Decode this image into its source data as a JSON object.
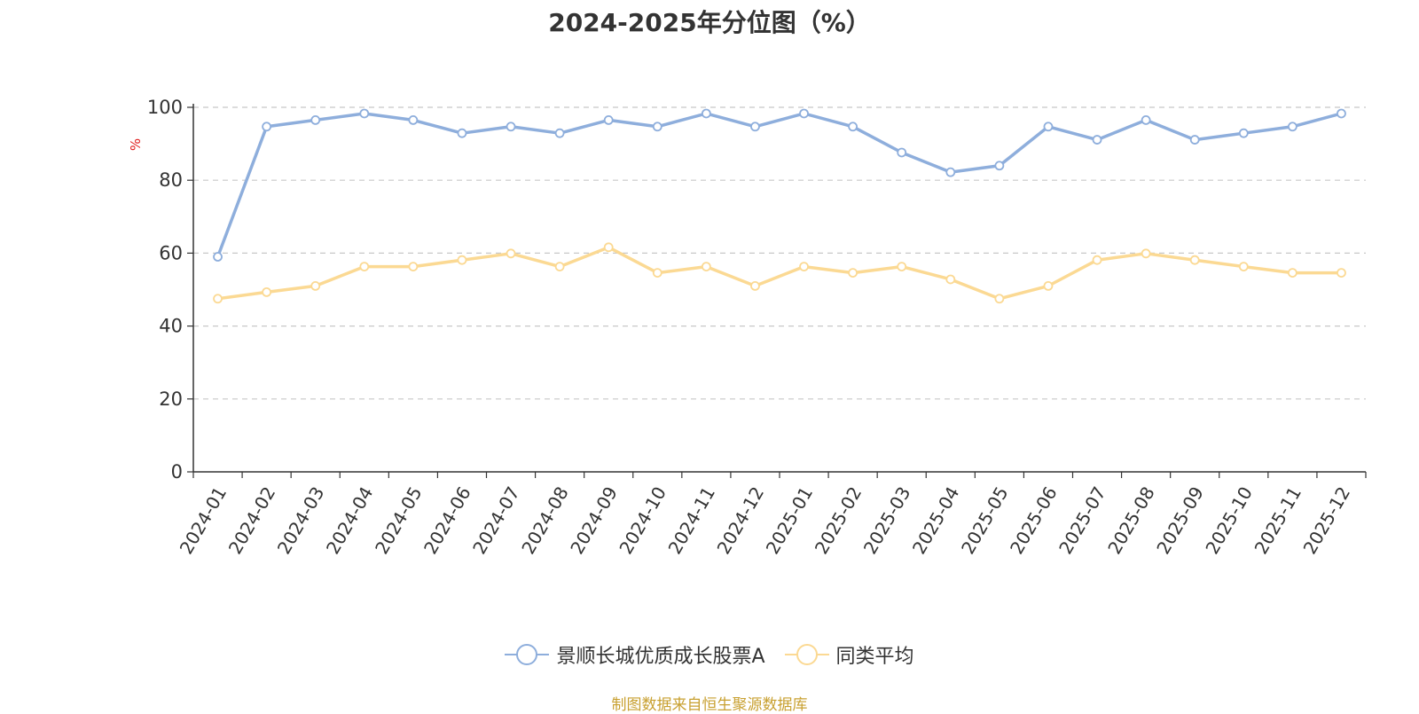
{
  "colors": {
    "series_1": "#8eaedc",
    "series_2": "#fbd993",
    "unit": "#e02020",
    "source": "#c8a030"
  },
  "chart_data": {
    "type": "line",
    "title": "2024-2025年分位图（%）",
    "ylabel": "%",
    "ylim": [
      0,
      100
    ],
    "yticks": [
      0,
      20,
      40,
      60,
      80,
      100
    ],
    "grid": true,
    "legend": "bottom-center",
    "categories": [
      "2024-01",
      "2024-02",
      "2024-03",
      "2024-04",
      "2024-05",
      "2024-06",
      "2024-07",
      "2024-08",
      "2024-09",
      "2024-10",
      "2024-11",
      "2024-12",
      "2025-01",
      "2025-02",
      "2025-03",
      "2025-04",
      "2025-05",
      "2025-06",
      "2025-07",
      "2025-08",
      "2025-09",
      "2025-10",
      "2025-11",
      "2025-12"
    ],
    "series": [
      {
        "name": "景顺长城优质成长股票A",
        "values": [
          59.0,
          94.7,
          96.5,
          98.3,
          96.5,
          92.9,
          94.7,
          92.9,
          96.5,
          94.7,
          98.3,
          94.7,
          98.3,
          94.7,
          87.6,
          82.2,
          84.0,
          94.7,
          91.1,
          96.5,
          91.1,
          92.9,
          94.7,
          98.3
        ]
      },
      {
        "name": "同类平均",
        "values": [
          47.5,
          49.3,
          51.0,
          56.3,
          56.3,
          58.1,
          59.9,
          56.3,
          61.6,
          54.6,
          56.3,
          51.0,
          56.3,
          54.6,
          56.3,
          52.8,
          47.5,
          51.0,
          58.1,
          59.9,
          58.1,
          56.3,
          54.6,
          54.6
        ]
      }
    ]
  },
  "source_text": "制图数据来自恒生聚源数据库"
}
